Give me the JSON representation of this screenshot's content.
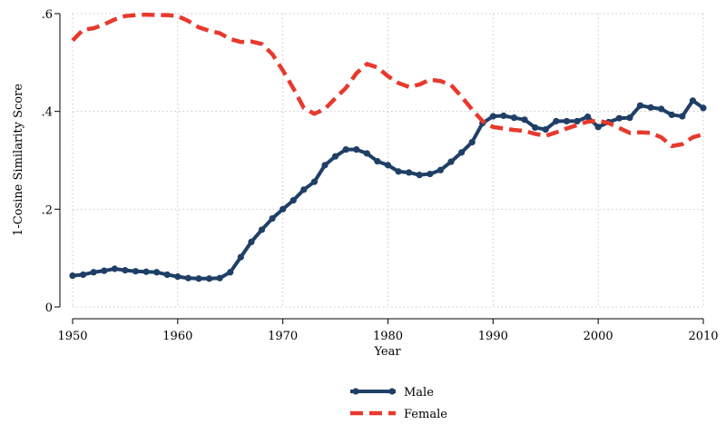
{
  "chart_data": {
    "type": "line",
    "title": "",
    "xlabel": "Year",
    "ylabel": "1-Cosine Similarity Score",
    "xlim": [
      1950,
      2010
    ],
    "ylim": [
      0,
      0.6
    ],
    "x_ticks": [
      1950,
      1960,
      1970,
      1980,
      1990,
      2000,
      2010
    ],
    "x_tick_labels": [
      "1950",
      "1960",
      "1970",
      "1980",
      "1990",
      "2000",
      "2010"
    ],
    "y_ticks": [
      0,
      0.2,
      0.4,
      0.6
    ],
    "y_tick_labels": [
      "0",
      ".2",
      ".4",
      ".6"
    ],
    "grid": true,
    "legend_position": "bottom",
    "x": [
      1950,
      1951,
      1952,
      1953,
      1954,
      1955,
      1956,
      1957,
      1958,
      1959,
      1960,
      1961,
      1962,
      1963,
      1964,
      1965,
      1966,
      1967,
      1968,
      1969,
      1970,
      1971,
      1972,
      1973,
      1974,
      1975,
      1976,
      1977,
      1978,
      1979,
      1980,
      1981,
      1982,
      1983,
      1984,
      1985,
      1986,
      1987,
      1988,
      1989,
      1990,
      1991,
      1992,
      1993,
      1994,
      1995,
      1996,
      1997,
      1998,
      1999,
      2000,
      2001,
      2002,
      2003,
      2004,
      2005,
      2006,
      2007,
      2008,
      2009,
      2010
    ],
    "series": [
      {
        "name": "Male",
        "color": "#1f3f66",
        "style": "solid-markers",
        "values": [
          0.064,
          0.066,
          0.071,
          0.074,
          0.078,
          0.075,
          0.073,
          0.072,
          0.071,
          0.066,
          0.062,
          0.059,
          0.058,
          0.058,
          0.059,
          0.071,
          0.102,
          0.133,
          0.158,
          0.181,
          0.2,
          0.218,
          0.24,
          0.256,
          0.29,
          0.308,
          0.322,
          0.322,
          0.314,
          0.298,
          0.29,
          0.277,
          0.275,
          0.27,
          0.272,
          0.28,
          0.297,
          0.316,
          0.337,
          0.376,
          0.39,
          0.391,
          0.387,
          0.383,
          0.367,
          0.363,
          0.38,
          0.38,
          0.38,
          0.389,
          0.368,
          0.378,
          0.386,
          0.387,
          0.412,
          0.408,
          0.405,
          0.393,
          0.39,
          0.422,
          0.407
        ]
      },
      {
        "name": "Female",
        "color": "#e8392e",
        "style": "dashed",
        "values": [
          0.545,
          0.567,
          0.57,
          0.578,
          0.588,
          0.595,
          0.597,
          0.598,
          0.597,
          0.597,
          0.595,
          0.585,
          0.572,
          0.565,
          0.56,
          0.548,
          0.542,
          0.543,
          0.538,
          0.517,
          0.484,
          0.447,
          0.407,
          0.395,
          0.405,
          0.427,
          0.448,
          0.478,
          0.497,
          0.49,
          0.472,
          0.458,
          0.45,
          0.455,
          0.465,
          0.462,
          0.454,
          0.43,
          0.404,
          0.38,
          0.368,
          0.365,
          0.362,
          0.36,
          0.354,
          0.35,
          0.357,
          0.365,
          0.372,
          0.379,
          0.381,
          0.376,
          0.366,
          0.356,
          0.357,
          0.356,
          0.347,
          0.329,
          0.333,
          0.347,
          0.353
        ]
      }
    ],
    "legend": [
      {
        "label": "Male"
      },
      {
        "label": "Female"
      }
    ]
  }
}
